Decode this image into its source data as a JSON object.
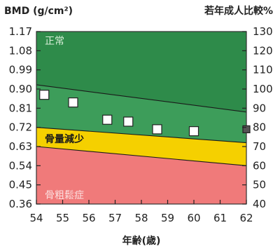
{
  "chart_data": {
    "type": "scatter",
    "title": "",
    "ylabel_left": "BMD (g/cm²)",
    "ylabel_right": "若年成人比較%",
    "xlabel": "年齢(歳)",
    "xlim": [
      54,
      62
    ],
    "ylim_left": [
      0.36,
      1.17
    ],
    "ylim_right": [
      40,
      130
    ],
    "x_ticks": [
      "54",
      "55",
      "56",
      "57",
      "58",
      "59",
      "60",
      "61",
      "62"
    ],
    "y_left_ticks": [
      "1.17",
      "1.08",
      "0.99",
      "0.90",
      "0.81",
      "0.72",
      "0.63",
      "0.54",
      "0.45",
      "0.36"
    ],
    "y_right_ticks": [
      "130",
      "120",
      "110",
      "100",
      "90",
      "80",
      "70",
      "60",
      "50",
      "40"
    ],
    "zones": [
      {
        "name": "正常",
        "color": "#2e8b4a"
      },
      {
        "name": "骨量減少",
        "color": "#f5d000"
      },
      {
        "name": "骨粗鬆症",
        "color": "#f07a7a"
      }
    ],
    "reference_lines": [
      {
        "name": "upper",
        "x": [
          54,
          62
        ],
        "y_left": [
          0.92,
          0.792
        ]
      },
      {
        "name": "middle",
        "x": [
          54,
          62
        ],
        "y_left": [
          0.72,
          0.648
        ]
      },
      {
        "name": "lower",
        "x": [
          54,
          62
        ],
        "y_left": [
          0.63,
          0.54
        ]
      }
    ],
    "series": [
      {
        "x": [
          54.3,
          55.4,
          56.7,
          57.5,
          58.6,
          60.0,
          62.0
        ],
        "y": [
          0.873,
          0.837,
          0.756,
          0.747,
          0.711,
          0.702,
          0.711
        ]
      }
    ],
    "grid": false
  }
}
